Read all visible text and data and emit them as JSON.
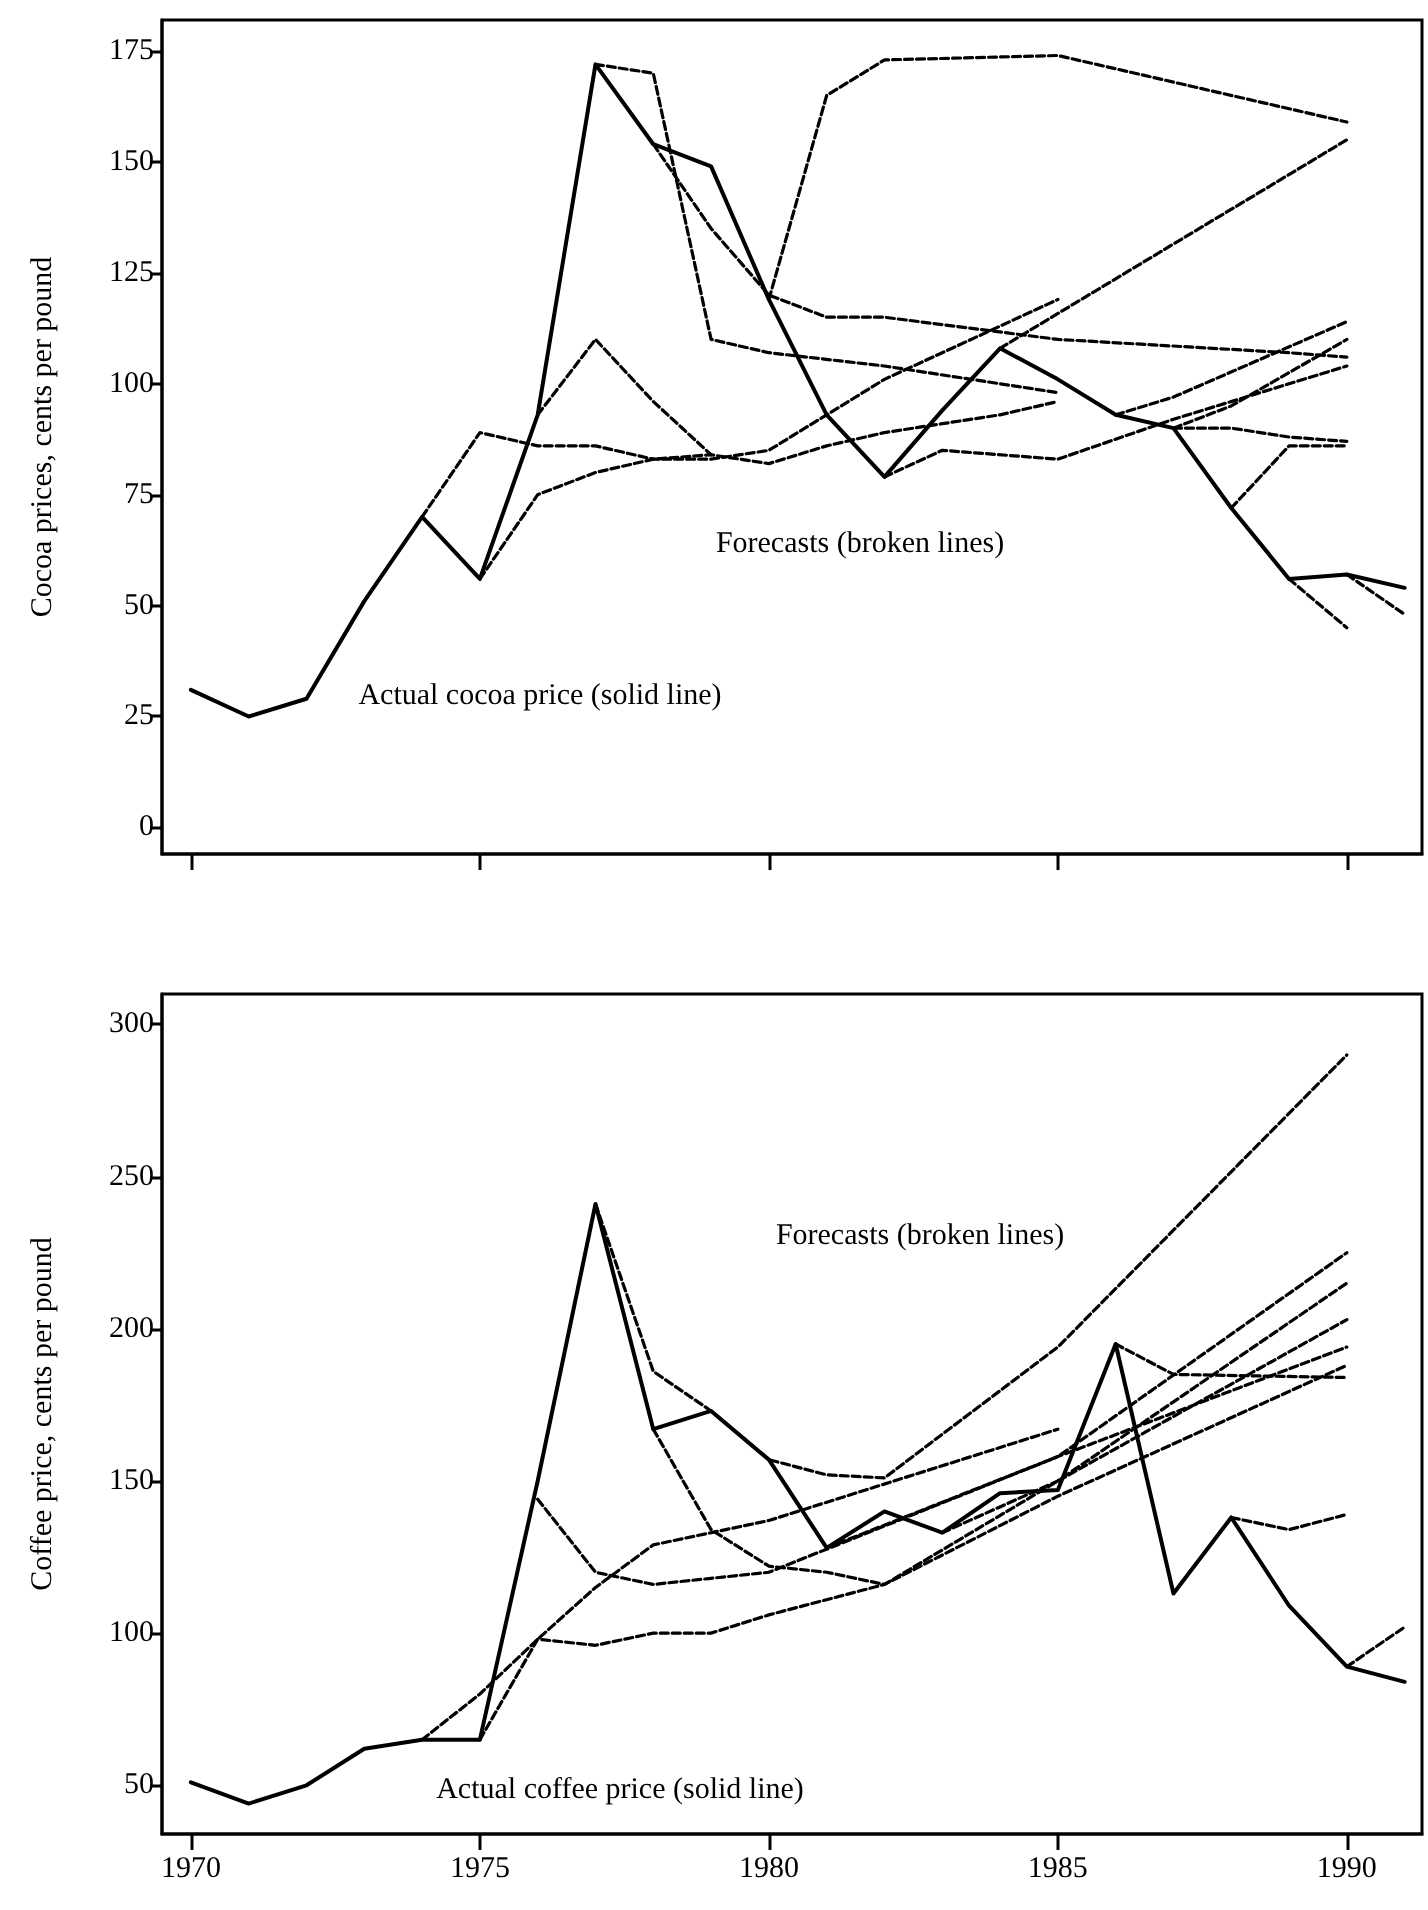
{
  "chart_data": [
    {
      "type": "line",
      "ylabel": "Cocoa prices, cents per pound",
      "xlim": [
        1969.5,
        1991.3
      ],
      "xticks": [
        1970,
        1975,
        1980,
        1985,
        1990
      ],
      "ylim": [
        -6,
        182
      ],
      "yticks": [
        0,
        25,
        50,
        75,
        100,
        125,
        150,
        175
      ],
      "tick_labels": "y",
      "annotations": [
        "Forecasts (broken lines)",
        "Actual cocoa price (solid line)"
      ],
      "series": [
        {
          "color": "#000000",
          "line_style": "solid",
          "x": [
            1970,
            1971,
            1972,
            1973,
            1974,
            1975,
            1976,
            1977,
            1978,
            1979,
            1980,
            1981,
            1982,
            1983,
            1984,
            1985,
            1986,
            1987,
            1988,
            1989,
            1990,
            1991
          ],
          "values": [
            31,
            25,
            29,
            51,
            70,
            56,
            93,
            172,
            154,
            149,
            119,
            93,
            79,
            94,
            108,
            101,
            93,
            90,
            72,
            56,
            57,
            54
          ]
        },
        {
          "color": "#000000",
          "line_style": "dashed",
          "x": [
            1974,
            1975,
            1976,
            1977,
            1978,
            1979,
            1980,
            1982,
            1985
          ],
          "values": [
            70,
            89,
            86,
            86,
            83,
            83,
            85,
            101,
            119
          ]
        },
        {
          "color": "#000000",
          "line_style": "dashed",
          "x": [
            1975,
            1976,
            1977,
            1978,
            1979,
            1980,
            1981,
            1982,
            1983,
            1984,
            1985
          ],
          "values": [
            56,
            75,
            80,
            83,
            84,
            82,
            86,
            89,
            91,
            93,
            96
          ]
        },
        {
          "color": "#000000",
          "line_style": "dashed",
          "x": [
            1976,
            1977,
            1978,
            1979
          ],
          "values": [
            93,
            110,
            96,
            84
          ]
        },
        {
          "color": "#000000",
          "line_style": "dashed",
          "x": [
            1977,
            1978,
            1979,
            1980,
            1982,
            1985
          ],
          "values": [
            172,
            170,
            110,
            107,
            104,
            98
          ]
        },
        {
          "color": "#000000",
          "line_style": "dashed",
          "x": [
            1978,
            1979,
            1980,
            1981,
            1982,
            1985,
            1989,
            1990
          ],
          "values": [
            154,
            135,
            120,
            115,
            115,
            110,
            107,
            106
          ]
        },
        {
          "color": "#000000",
          "line_style": "dashed",
          "x": [
            1980,
            1981,
            1982,
            1985,
            1990
          ],
          "values": [
            119,
            165,
            173,
            174,
            159
          ]
        },
        {
          "color": "#000000",
          "line_style": "dashed",
          "x": [
            1982,
            1983,
            1985,
            1987,
            1990
          ],
          "values": [
            79,
            85,
            83,
            92,
            104
          ]
        },
        {
          "color": "#000000",
          "line_style": "dashed",
          "x": [
            1984,
            1990
          ],
          "values": [
            108,
            155
          ]
        },
        {
          "color": "#000000",
          "line_style": "dashed",
          "x": [
            1986,
            1987,
            1990
          ],
          "values": [
            93,
            97,
            114
          ]
        },
        {
          "color": "#000000",
          "line_style": "dashed",
          "x": [
            1987,
            1988,
            1990
          ],
          "values": [
            90,
            95,
            110
          ]
        },
        {
          "color": "#000000",
          "line_style": "dashed",
          "x": [
            1987,
            1988,
            1989,
            1990
          ],
          "values": [
            90,
            90,
            88,
            87
          ]
        },
        {
          "color": "#000000",
          "line_style": "dashed",
          "x": [
            1988,
            1989,
            1990
          ],
          "values": [
            72,
            86,
            86
          ]
        },
        {
          "color": "#000000",
          "line_style": "dashed",
          "x": [
            1989,
            1990
          ],
          "values": [
            56,
            45
          ]
        },
        {
          "color": "#000000",
          "line_style": "dashed",
          "x": [
            1990,
            1991
          ],
          "values": [
            57,
            48
          ]
        }
      ]
    },
    {
      "type": "line",
      "ylabel": "Coffee price, cents per pound",
      "xlim": [
        1969.5,
        1991.3
      ],
      "xticks": [
        1970,
        1975,
        1980,
        1985,
        1990
      ],
      "ylim": [
        34,
        310
      ],
      "yticks": [
        50,
        100,
        150,
        200,
        250,
        300
      ],
      "annotations": [
        "Forecasts (broken lines)",
        "Actual coffee price (solid line)"
      ],
      "series": [
        {
          "color": "#000000",
          "line_style": "solid",
          "x": [
            1970,
            1971,
            1972,
            1973,
            1974,
            1975,
            1976,
            1977,
            1978,
            1979,
            1980,
            1981,
            1982,
            1983,
            1984,
            1985,
            1986,
            1987,
            1988,
            1989,
            1990,
            1991
          ],
          "values": [
            51,
            44,
            50,
            62,
            65,
            65,
            150,
            241,
            167,
            173,
            157,
            128,
            140,
            133,
            146,
            147,
            195,
            113,
            138,
            109,
            89,
            84
          ]
        },
        {
          "color": "#000000",
          "line_style": "dashed",
          "x": [
            1974,
            1975,
            1976,
            1977,
            1978,
            1979,
            1980,
            1985
          ],
          "values": [
            65,
            80,
            98,
            115,
            129,
            133,
            137,
            167
          ]
        },
        {
          "color": "#000000",
          "line_style": "dashed",
          "x": [
            1975,
            1976,
            1977,
            1978,
            1979,
            1980,
            1982,
            1985,
            1990
          ],
          "values": [
            65,
            98,
            96,
            100,
            100,
            106,
            116,
            145,
            188
          ]
        },
        {
          "color": "#000000",
          "line_style": "dashed",
          "x": [
            1976,
            1977,
            1978,
            1979,
            1980,
            1985,
            1990
          ],
          "values": [
            144,
            120,
            116,
            118,
            120,
            158,
            194
          ]
        },
        {
          "color": "#000000",
          "line_style": "dashed",
          "x": [
            1978,
            1979,
            1980,
            1981,
            1982,
            1985,
            1990
          ],
          "values": [
            167,
            134,
            122,
            120,
            116,
            150,
            203
          ]
        },
        {
          "color": "#000000",
          "line_style": "dashed",
          "x": [
            1977,
            1978,
            1979,
            1980,
            1981,
            1982,
            1985,
            1990
          ],
          "values": [
            241,
            186,
            173,
            157,
            152,
            151,
            194,
            290
          ]
        },
        {
          "color": "#000000",
          "line_style": "dashed",
          "x": [
            1981,
            1985,
            1990
          ],
          "values": [
            128,
            158,
            225
          ]
        },
        {
          "color": "#000000",
          "line_style": "dashed",
          "x": [
            1983,
            1985,
            1990
          ],
          "values": [
            133,
            150,
            215
          ]
        },
        {
          "color": "#000000",
          "line_style": "dashed",
          "x": [
            1986,
            1987,
            1990
          ],
          "values": [
            195,
            185,
            184
          ]
        },
        {
          "color": "#000000",
          "line_style": "dashed",
          "x": [
            1988,
            1989,
            1990
          ],
          "values": [
            138,
            134,
            139
          ]
        },
        {
          "color": "#000000",
          "line_style": "dashed",
          "x": [
            1990,
            1991
          ],
          "values": [
            89,
            102
          ]
        }
      ]
    }
  ]
}
